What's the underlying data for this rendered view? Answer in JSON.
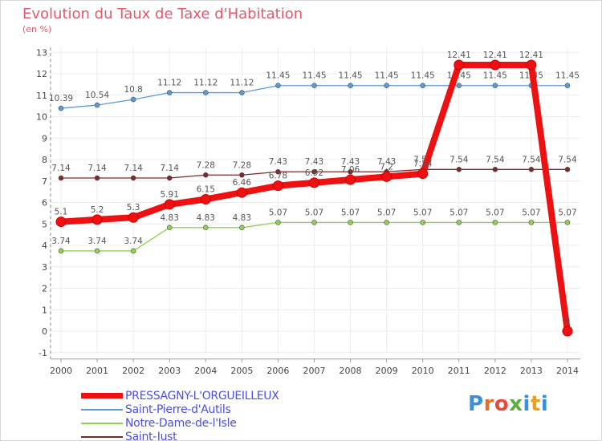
{
  "title": "Evolution du Taux de Taxe d'Habitation",
  "subtitle": "(en %)",
  "chart_data": {
    "type": "line",
    "title": "Evolution du Taux de Taxe d'Habitation",
    "ylabel": "(en %)",
    "xlabel": "",
    "ylim": [
      -1,
      13
    ],
    "categories": [
      "2000",
      "2001",
      "2002",
      "2003",
      "2004",
      "2005",
      "2006",
      "2007",
      "2008",
      "2009",
      "2010",
      "2011",
      "2012",
      "2013",
      "2014"
    ],
    "y_ticks": [
      "-1",
      "0",
      "1",
      "2",
      "3",
      "4",
      "5",
      "6",
      "7",
      "8",
      "9",
      "10",
      "11",
      "12",
      "13"
    ],
    "series": [
      {
        "name": "Saint-Just",
        "color": "#7a2a2a",
        "values": [
          7.14,
          7.14,
          7.14,
          7.14,
          7.28,
          7.28,
          7.43,
          7.43,
          7.43,
          7.43,
          7.54,
          7.54,
          7.54,
          7.54,
          7.54
        ],
        "labels": [
          "7.14",
          "7.14",
          "7.14",
          "7.14",
          "7.28",
          "7.28",
          "7.43",
          "7.43",
          "7.43",
          "7.43",
          "7.54",
          "7.54",
          "7.54",
          "7.54",
          "7.54"
        ]
      },
      {
        "name": "Notre-Dame-de-l'Isle",
        "color": "#8fd14f",
        "values": [
          3.74,
          3.74,
          3.74,
          4.83,
          4.83,
          4.83,
          5.07,
          5.07,
          5.07,
          5.07,
          5.07,
          5.07,
          5.07,
          5.07,
          5.07
        ],
        "labels": [
          "3.74",
          "3.74",
          "3.74",
          "4.83",
          "4.83",
          "4.83",
          "5.07",
          "5.07",
          "5.07",
          "5.07",
          "5.07",
          "5.07",
          "5.07",
          "5.07",
          "5.07"
        ]
      },
      {
        "name": "Saint-Pierre-d'Autils",
        "color": "#5b9bd5",
        "values": [
          10.39,
          10.54,
          10.8,
          11.12,
          11.12,
          11.12,
          11.45,
          11.45,
          11.45,
          11.45,
          11.45,
          11.45,
          11.45,
          11.45,
          11.45
        ],
        "labels": [
          "10.39",
          "10.54",
          "10.8",
          "11.12",
          "11.12",
          "11.12",
          "11.45",
          "11.45",
          "11.45",
          "11.45",
          "11.45",
          "11.45",
          "11.45",
          "11.45",
          "11.45"
        ]
      },
      {
        "name": "PRESSAGNY-L'ORGUEILLEUX",
        "color": "#ee1111",
        "values": [
          5.1,
          5.2,
          5.3,
          5.91,
          6.15,
          6.46,
          6.78,
          6.92,
          7.06,
          7.2,
          7.34,
          12.41,
          12.41,
          12.41,
          0
        ],
        "labels": [
          "5.1",
          "5.2",
          "5.3",
          "5.91",
          "6.15",
          "6.46",
          "6.78",
          "6.92",
          "7.06",
          "7.2",
          "7.34",
          "12.41",
          "12.41",
          "12.41",
          "0"
        ]
      }
    ],
    "legend": [
      "PRESSAGNY-L'ORGUEILLEUX",
      "Saint-Pierre-d'Autils",
      "Notre-Dame-de-l'Isle",
      "Saint-Just"
    ],
    "legend_position": "bottom-left"
  },
  "legend": [
    {
      "label": "PRESSAGNY-L'ORGUEILLEUX",
      "color": "#ee1111"
    },
    {
      "label": "Saint-Pierre-d'Autils",
      "color": "#5b9bd5"
    },
    {
      "label": "Notre-Dame-de-l'Isle",
      "color": "#8fd14f"
    },
    {
      "label": "Saint-Just",
      "color": "#7a2a2a"
    }
  ],
  "logo": {
    "text": "Proxiti",
    "letters": [
      "P",
      "r",
      "o",
      "x",
      "i",
      "t",
      "i"
    ],
    "colors": [
      "#3a8fd8",
      "#e0702a",
      "#e84a3a",
      "#5ab03a",
      "#3a8fd8",
      "#e8a020",
      "#3a8fd8"
    ]
  }
}
